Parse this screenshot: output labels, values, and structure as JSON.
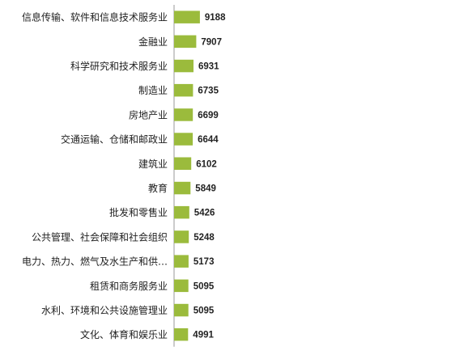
{
  "chart_data": {
    "type": "bar",
    "orientation": "horizontal",
    "title": "",
    "xlabel": "",
    "ylabel": "",
    "grid": false,
    "legend": "none",
    "bar_color": "#9BBB3C",
    "axis_color": "#9a9a9a",
    "xlim": [
      0,
      10000
    ],
    "categories": [
      "信息传输、软件和信息技术服务业",
      "金融业",
      "科学研究和技术服务业",
      "制造业",
      "房地产业",
      "交通运输、仓储和邮政业",
      "建筑业",
      "教育",
      "批发和零售业",
      "公共管理、社会保障和社会组织",
      "电力、热力、燃气及水生产和供…",
      "租赁和商务服务业",
      "水利、环境和公共设施管理业",
      "文化、体育和娱乐业"
    ],
    "values": [
      9188,
      7907,
      6931,
      6735,
      6699,
      6644,
      6102,
      5849,
      5426,
      5248,
      5173,
      5095,
      5095,
      4991
    ]
  }
}
